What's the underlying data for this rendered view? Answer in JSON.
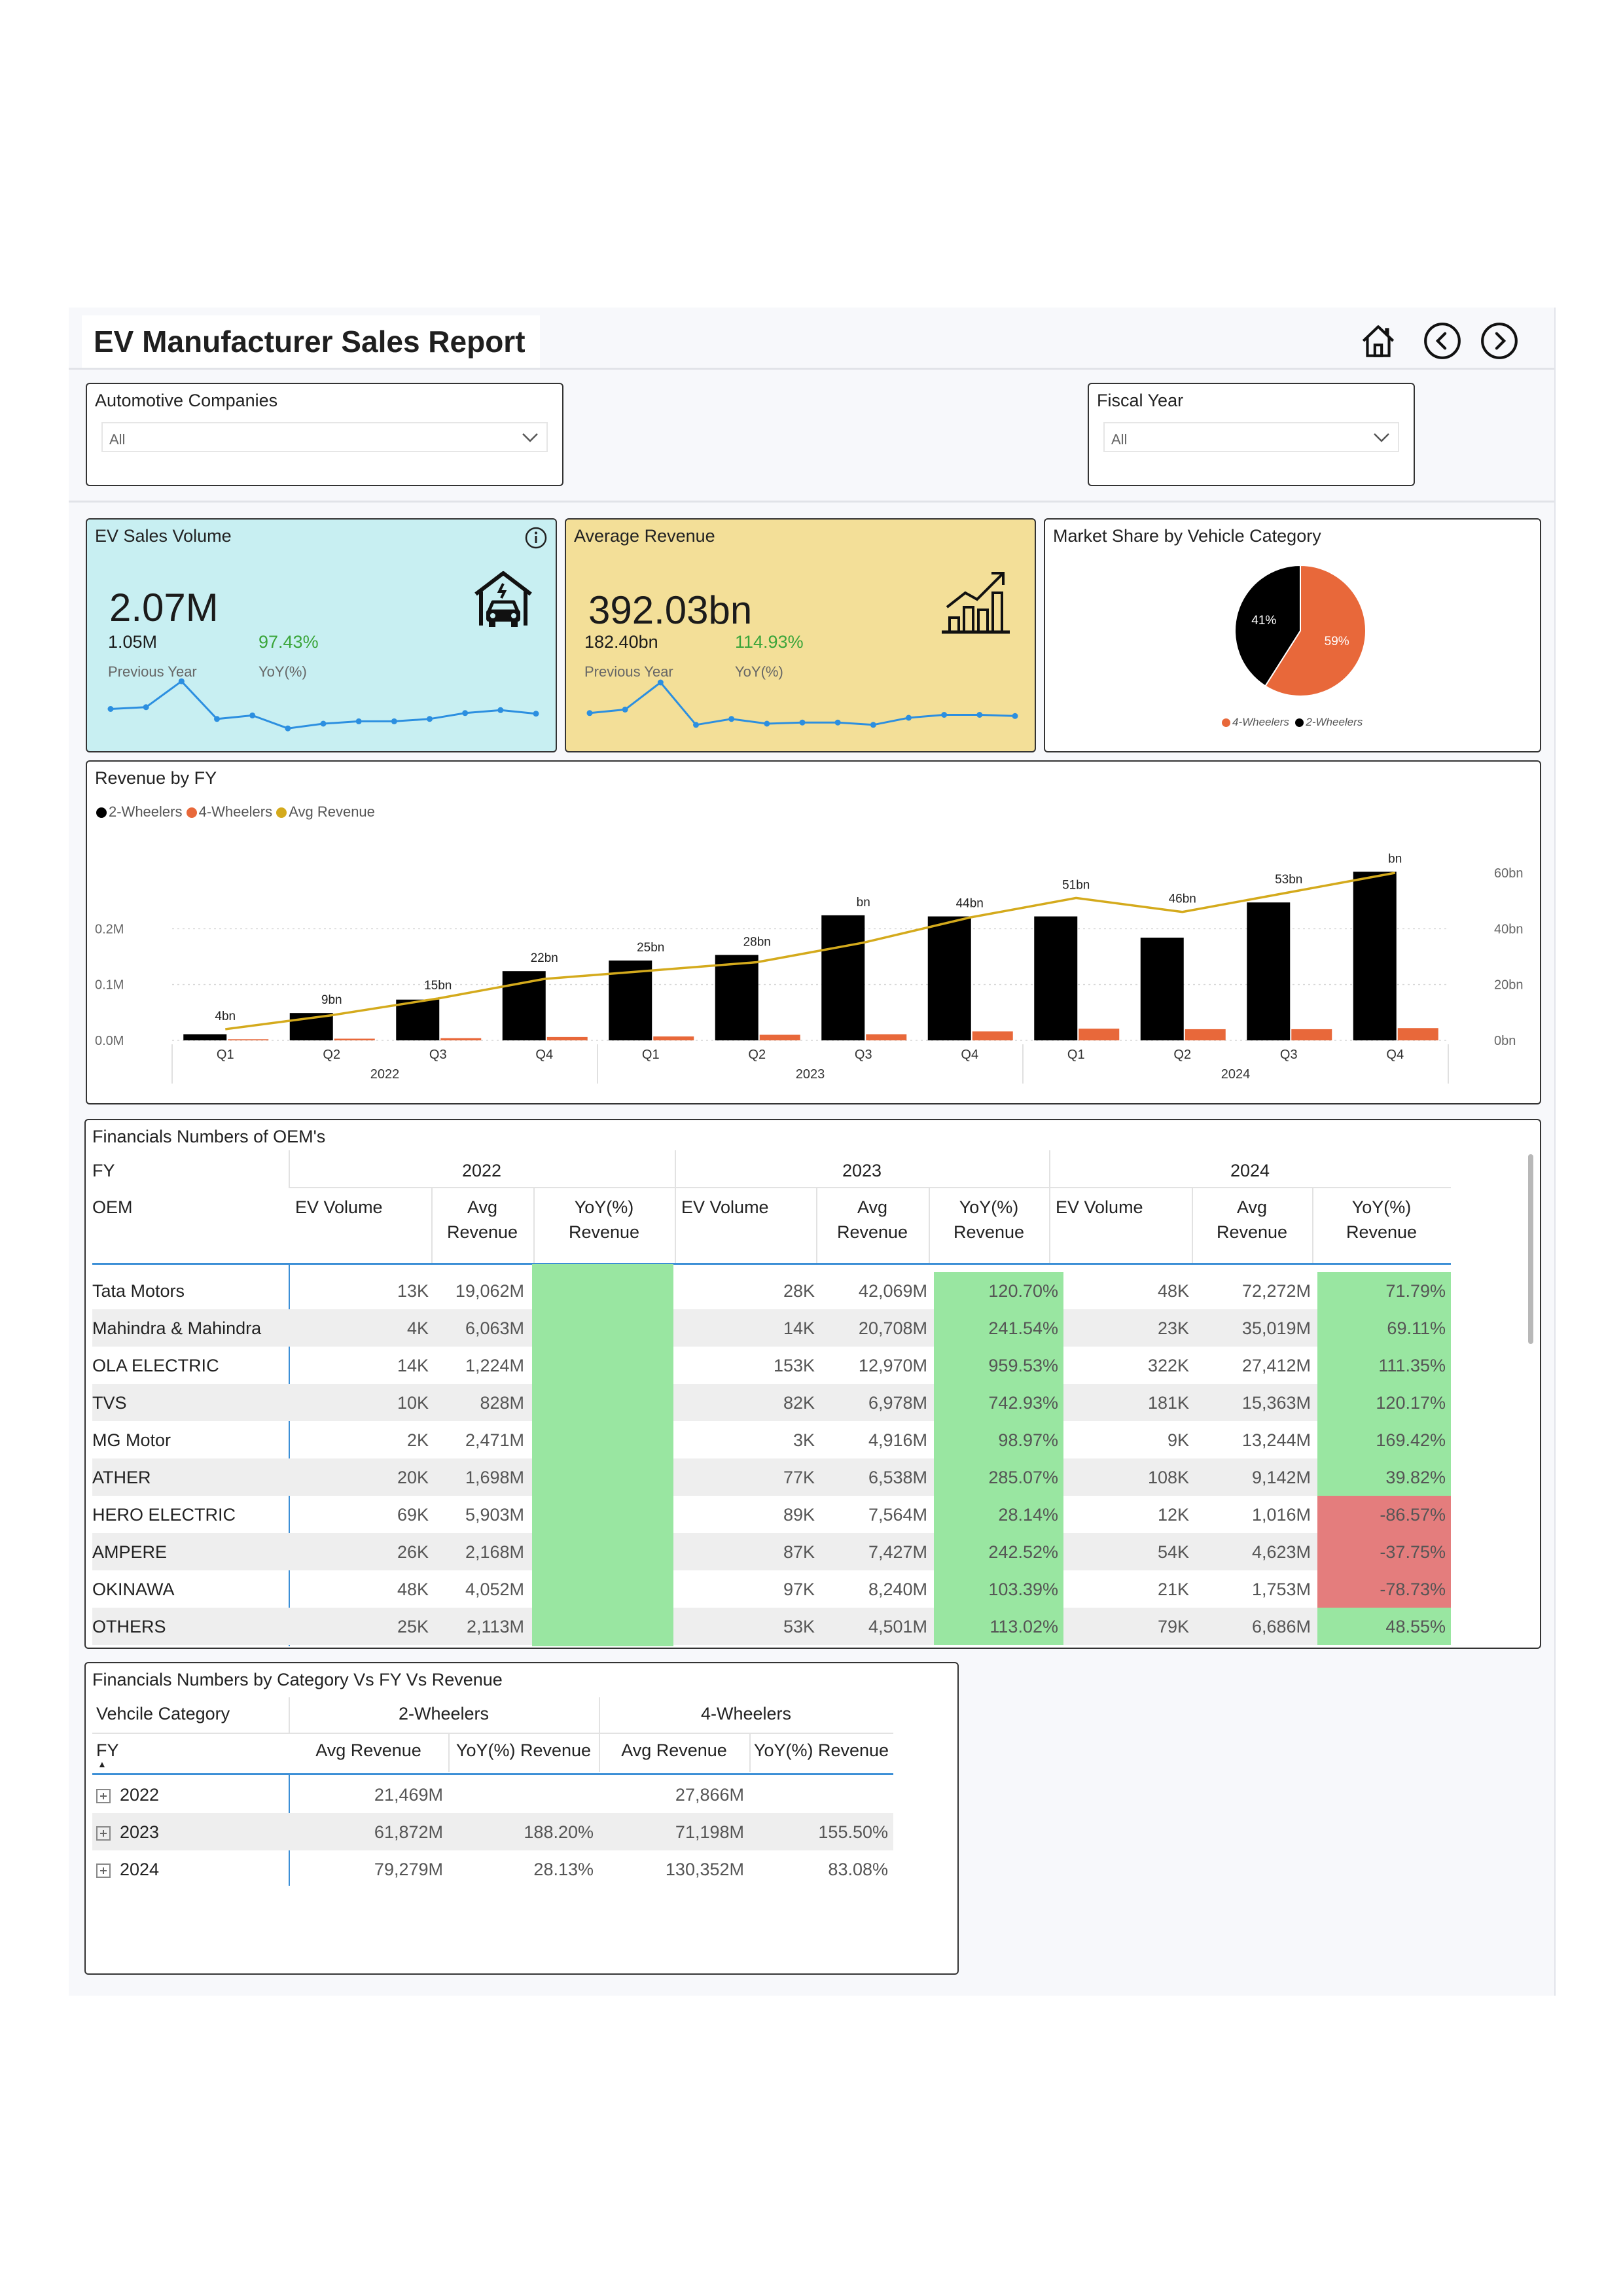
{
  "report": {
    "title": "EV Manufacturer Sales Report",
    "icons": [
      "home-icon",
      "back-icon",
      "forward-icon"
    ]
  },
  "slicers": {
    "companies": {
      "label": "Automotive Companies",
      "value": "All"
    },
    "fiscal_year": {
      "label": "Fiscal Year",
      "value": "All"
    }
  },
  "kpi_volume": {
    "title": "EV Sales Volume",
    "value": "2.07M",
    "previous": "1.05M",
    "yoy": "97.43%",
    "previous_label": "Previous Year",
    "yoy_label": "YoY(%)",
    "bg": "#c8eff2",
    "spark": [
      0.55,
      0.52,
      0.08,
      0.72,
      0.66,
      0.88,
      0.8,
      0.76,
      0.76,
      0.72,
      0.62,
      0.57,
      0.63
    ]
  },
  "kpi_revenue": {
    "title": "Average Revenue",
    "value": "392.03bn",
    "previous": "182.40bn",
    "yoy": "114.93%",
    "previous_label": "Previous Year",
    "yoy_label": "YoY(%)",
    "bg": "#f3df98",
    "spark": [
      0.62,
      0.56,
      0.1,
      0.82,
      0.72,
      0.8,
      0.78,
      0.78,
      0.82,
      0.7,
      0.65,
      0.65,
      0.67
    ]
  },
  "market_share": {
    "title": "Market Share by Vehicle Category",
    "legend": [
      "4-Wheelers",
      "2-Wheelers"
    ],
    "chart_data": {
      "type": "pie",
      "slices": [
        {
          "name": "4-Wheelers",
          "value": 59,
          "label": "59%",
          "color": "#e8683a"
        },
        {
          "name": "2-Wheelers",
          "value": 41,
          "label": "41%",
          "color": "#000000"
        }
      ]
    }
  },
  "revenue_by_fy": {
    "title": "Revenue by FY",
    "legend": [
      "2-Wheelers",
      "4-Wheelers",
      "Avg Revenue"
    ],
    "chart_data": {
      "type": "bar",
      "categories": [
        "Q1",
        "Q2",
        "Q3",
        "Q4",
        "Q1",
        "Q2",
        "Q3",
        "Q4",
        "Q1",
        "Q2",
        "Q3",
        "Q4"
      ],
      "groups": [
        "2022",
        "2023",
        "2024"
      ],
      "left_axis": {
        "ticks": [
          "0.0M",
          "0.1M",
          "0.2M"
        ],
        "ylim": [
          0,
          0.3
        ]
      },
      "right_axis": {
        "ticks": [
          "0bn",
          "20bn",
          "40bn",
          "60bn"
        ],
        "ylim": [
          0,
          60
        ]
      },
      "series": [
        {
          "name": "2-Wheelers",
          "color": "#000000",
          "values": [
            0.011,
            0.049,
            0.073,
            0.124,
            0.143,
            0.153,
            0.224,
            0.222,
            0.222,
            0.184,
            0.247,
            0.302
          ]
        },
        {
          "name": "4-Wheelers",
          "color": "#e8683a",
          "values": [
            0.002,
            0.003,
            0.004,
            0.006,
            0.007,
            0.01,
            0.011,
            0.016,
            0.021,
            0.02,
            0.02,
            0.022
          ]
        },
        {
          "name": "Avg Revenue",
          "color": "#d4aa1c",
          "type": "line",
          "values": [
            4,
            9,
            15,
            22,
            25,
            28,
            35,
            44,
            51,
            46,
            53,
            60
          ]
        }
      ],
      "data_labels": [
        "4bn",
        "9bn",
        "15bn",
        "22bn",
        "25bn",
        "28bn",
        "bn",
        "44bn",
        "51bn",
        "46bn",
        "53bn",
        "bn"
      ]
    }
  },
  "oem_table": {
    "title": "Financials Numbers of OEM's",
    "fy_label": "FY",
    "oem_label": "OEM",
    "years": [
      "2022",
      "2023",
      "2024"
    ],
    "columns": {
      "vol": "EV Volume",
      "avg1": "Avg",
      "avg2": "Revenue",
      "yoy1": "YoY(%)",
      "yoy2": "Revenue"
    },
    "rows": [
      {
        "oem": "Tata Motors",
        "v22": "13K",
        "r22": "19,062M",
        "v23": "28K",
        "r23": "42,069M",
        "y23": "120.70%",
        "v24": "48K",
        "r24": "72,272M",
        "y24": "71.79%"
      },
      {
        "oem": "Mahindra & Mahindra",
        "v22": "4K",
        "r22": "6,063M",
        "v23": "14K",
        "r23": "20,708M",
        "y23": "241.54%",
        "v24": "23K",
        "r24": "35,019M",
        "y24": "69.11%"
      },
      {
        "oem": "OLA ELECTRIC",
        "v22": "14K",
        "r22": "1,224M",
        "v23": "153K",
        "r23": "12,970M",
        "y23": "959.53%",
        "v24": "322K",
        "r24": "27,412M",
        "y24": "111.35%"
      },
      {
        "oem": "TVS",
        "v22": "10K",
        "r22": "828M",
        "v23": "82K",
        "r23": "6,978M",
        "y23": "742.93%",
        "v24": "181K",
        "r24": "15,363M",
        "y24": "120.17%"
      },
      {
        "oem": "MG Motor",
        "v22": "2K",
        "r22": "2,471M",
        "v23": "3K",
        "r23": "4,916M",
        "y23": "98.97%",
        "v24": "9K",
        "r24": "13,244M",
        "y24": "169.42%"
      },
      {
        "oem": "ATHER",
        "v22": "20K",
        "r22": "1,698M",
        "v23": "77K",
        "r23": "6,538M",
        "y23": "285.07%",
        "v24": "108K",
        "r24": "9,142M",
        "y24": "39.82%"
      },
      {
        "oem": "HERO ELECTRIC",
        "v22": "69K",
        "r22": "5,903M",
        "v23": "89K",
        "r23": "7,564M",
        "y23": "28.14%",
        "v24": "12K",
        "r24": "1,016M",
        "y24": "-86.57%"
      },
      {
        "oem": "AMPERE",
        "v22": "26K",
        "r22": "2,168M",
        "v23": "87K",
        "r23": "7,427M",
        "y23": "242.52%",
        "v24": "54K",
        "r24": "4,623M",
        "y24": "-37.75%"
      },
      {
        "oem": "OKINAWA",
        "v22": "48K",
        "r22": "4,052M",
        "v23": "97K",
        "r23": "8,240M",
        "y23": "103.39%",
        "v24": "21K",
        "r24": "1,753M",
        "y24": "-78.73%"
      },
      {
        "oem": "OTHERS",
        "v22": "25K",
        "r22": "2,113M",
        "v23": "53K",
        "r23": "4,501M",
        "y23": "113.02%",
        "v24": "79K",
        "r24": "6,686M",
        "y24": "48.55%"
      }
    ]
  },
  "cat_table": {
    "title": "Financials Numbers by Category Vs FY Vs Revenue",
    "cat_label": "Vehcile Category",
    "fy_label": "FY",
    "cat_2w": "2-Wheelers",
    "cat_4w": "4-Wheelers",
    "avg_label": "Avg Revenue",
    "yoy_label": "YoY(%) Revenue",
    "rows": [
      {
        "fy": "2022",
        "a2": "21,469M",
        "y2": "",
        "a4": "27,866M",
        "y4": ""
      },
      {
        "fy": "2023",
        "a2": "61,872M",
        "y2": "188.20%",
        "a4": "71,198M",
        "y4": "155.50%"
      },
      {
        "fy": "2024",
        "a2": "79,279M",
        "y2": "28.13%",
        "a4": "130,352M",
        "y4": "83.08%"
      }
    ]
  }
}
